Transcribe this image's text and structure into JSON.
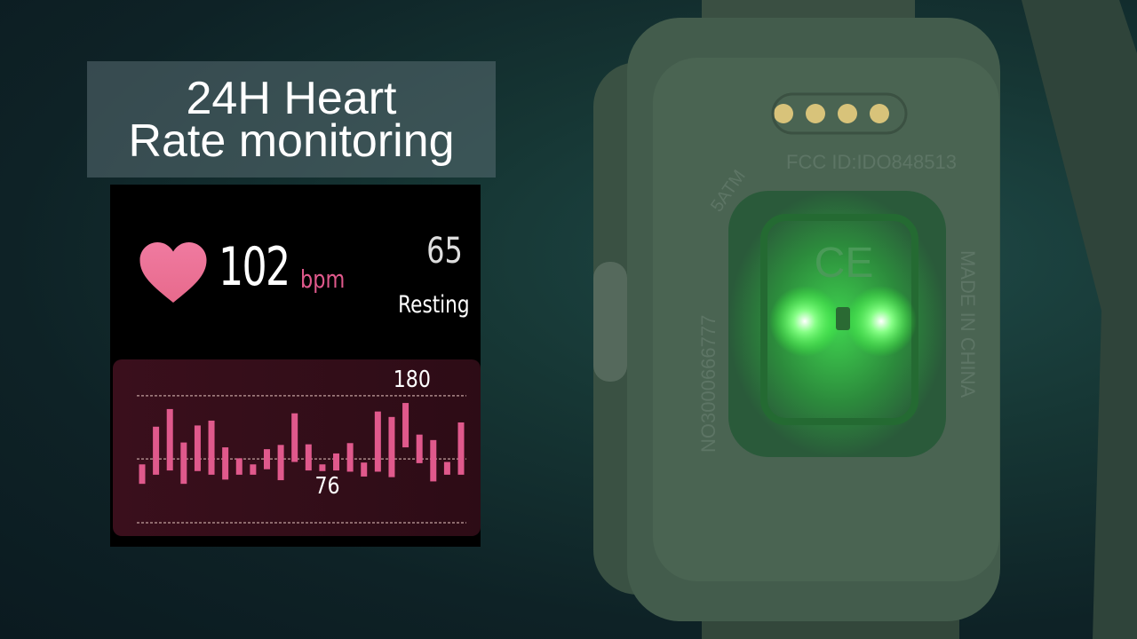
{
  "title": {
    "line1": "24H Heart",
    "line2": "Rate monitoring"
  },
  "screen": {
    "heart_rate": "102",
    "unit": "bpm",
    "resting_value": "65",
    "resting_label": "Resting"
  },
  "chart_data": {
    "type": "bar",
    "subtype": "floating-range",
    "annotations": [
      "180",
      "76"
    ],
    "grid": true,
    "ranges_bpm": [
      [
        35,
        67
      ],
      [
        50,
        129
      ],
      [
        57,
        158
      ],
      [
        35,
        103
      ],
      [
        56,
        131
      ],
      [
        50,
        139
      ],
      [
        42,
        95
      ],
      [
        50,
        77
      ],
      [
        50,
        67
      ],
      [
        59,
        92
      ],
      [
        41,
        99
      ],
      [
        71,
        151
      ],
      [
        57,
        100
      ],
      [
        56,
        67
      ],
      [
        57,
        85
      ],
      [
        55,
        102
      ],
      [
        47,
        70
      ],
      [
        55,
        154
      ],
      [
        46,
        145
      ],
      [
        95,
        168
      ],
      [
        69,
        116
      ],
      [
        39,
        107
      ],
      [
        50,
        71
      ],
      [
        50,
        136
      ]
    ],
    "ylim": [
      -29,
      190
    ],
    "gridlines": [
      180,
      76,
      -29
    ],
    "bar_color": "#e0598c"
  },
  "watch": {
    "fcc": "FCC ID:IDO848513",
    "atm": "5ATM",
    "serial": "NO3000666777",
    "origin": "MADE IN CHINA",
    "ce": "CE",
    "body_color": "#3f5a48",
    "led_color": "#5cff6a"
  }
}
